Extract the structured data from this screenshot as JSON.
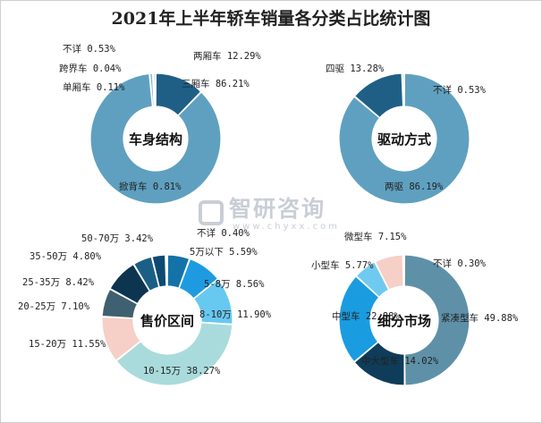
{
  "title": "2021年上半年轿车销量各分类占比统计图",
  "watermark": {
    "text": "智研咨询",
    "url": "www.chyxx.com"
  },
  "chart_data": [
    {
      "type": "pie",
      "title": "车身结构",
      "slices": [
        {
          "label": "两厢车",
          "value": 12.29,
          "color": "#1f5f86"
        },
        {
          "label": "三厢车",
          "value": 86.21,
          "color": "#5fa0c0"
        },
        {
          "label": "掀背车",
          "value": 0.81,
          "color": "#88b9d0"
        },
        {
          "label": "单厢车",
          "value": 0.11,
          "color": "#9cc6d8"
        },
        {
          "label": "跨界车",
          "value": 0.04,
          "color": "#b8d7e4"
        },
        {
          "label": "不详",
          "value": 0.53,
          "color": "#8fb2c6"
        }
      ]
    },
    {
      "type": "pie",
      "title": "驱动方式",
      "slices": [
        {
          "label": "两驱",
          "value": 86.19,
          "color": "#5fa0c0"
        },
        {
          "label": "四驱",
          "value": 13.28,
          "color": "#1f5f86"
        },
        {
          "label": "不详",
          "value": 0.53,
          "color": "#8fb2c6"
        }
      ]
    },
    {
      "type": "pie",
      "title": "售价区间",
      "slices": [
        {
          "label": "5万以下",
          "value": 5.59,
          "color": "#1373a8"
        },
        {
          "label": "5-8万",
          "value": 8.56,
          "color": "#1e9be0"
        },
        {
          "label": "8-10万",
          "value": 11.9,
          "color": "#67c8f0"
        },
        {
          "label": "10-15万",
          "value": 38.27,
          "color": "#a9dbdc"
        },
        {
          "label": "15-20万",
          "value": 11.55,
          "color": "#f6cfc6"
        },
        {
          "label": "20-25万",
          "value": 7.1,
          "color": "#3f6070"
        },
        {
          "label": "25-35万",
          "value": 8.42,
          "color": "#0d3550"
        },
        {
          "label": "35-50万",
          "value": 4.8,
          "color": "#1b5f86"
        },
        {
          "label": "50-70万",
          "value": 3.42,
          "color": "#0d4a73"
        },
        {
          "label": "不详",
          "value": 0.4,
          "color": "#7fa6b8"
        }
      ]
    },
    {
      "type": "pie",
      "title": "细分市场",
      "slices": [
        {
          "label": "紧凑型车",
          "value": 49.88,
          "color": "#5e91a8"
        },
        {
          "label": "中大型车",
          "value": 14.02,
          "color": "#0f3c5a"
        },
        {
          "label": "中型车",
          "value": 22.88,
          "color": "#1a9ce0"
        },
        {
          "label": "小型车",
          "value": 5.77,
          "color": "#6fcaf0"
        },
        {
          "label": "微型车",
          "value": 7.15,
          "color": "#f6cfc6"
        },
        {
          "label": "不详",
          "value": 0.3,
          "color": "#7fa6b8"
        }
      ]
    }
  ]
}
